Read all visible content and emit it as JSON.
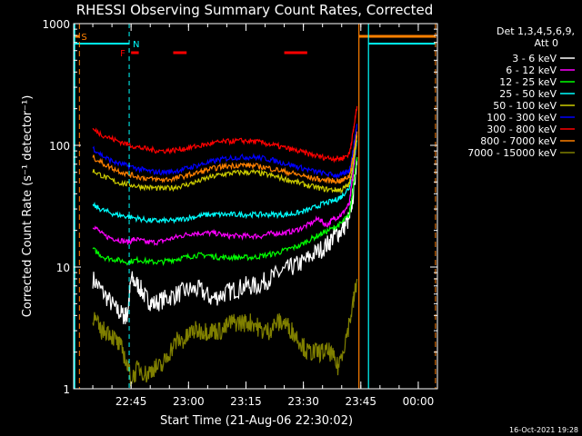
{
  "chart_data": {
    "type": "line",
    "title": "RHESSI Observing Summary Count Rates, Corrected",
    "xlabel": "Start Time (21-Aug-06 22:30:02)",
    "ylabel": "Corrected Count Rate (s⁻¹ detector⁻¹)",
    "yscale": "log",
    "ylim": [
      1,
      1000
    ],
    "xlim_minutes": [
      0,
      95
    ],
    "y_ticks": [
      {
        "v": 1,
        "label": "1"
      },
      {
        "v": 10,
        "label": "10"
      },
      {
        "v": 100,
        "label": "100"
      },
      {
        "v": 1000,
        "label": "1000"
      }
    ],
    "x_ticks": [
      {
        "t": 15,
        "label": "22:45"
      },
      {
        "t": 30,
        "label": "23:00"
      },
      {
        "t": 45,
        "label": "23:15"
      },
      {
        "t": 60,
        "label": "23:30"
      },
      {
        "t": 75,
        "label": "23:45"
      },
      {
        "t": 90,
        "label": "00:00"
      }
    ],
    "legend": {
      "header": [
        "Det 1,3,4,5,6,9,",
        "Att 0"
      ],
      "position": "right"
    },
    "series": [
      {
        "name": "3 - 6 keV",
        "color": "#ffffff",
        "data": [
          [
            5,
            8
          ],
          [
            8,
            6
          ],
          [
            11,
            4.5
          ],
          [
            13,
            4
          ],
          [
            14,
            4
          ],
          [
            15,
            8
          ],
          [
            17,
            7
          ],
          [
            19,
            5.5
          ],
          [
            21,
            5
          ],
          [
            24,
            5.5
          ],
          [
            27,
            6
          ],
          [
            30,
            6.5
          ],
          [
            33,
            6.5
          ],
          [
            36,
            5.5
          ],
          [
            39,
            6
          ],
          [
            42,
            6.5
          ],
          [
            45,
            7
          ],
          [
            48,
            7
          ],
          [
            51,
            8
          ],
          [
            54,
            9
          ],
          [
            57,
            10
          ],
          [
            60,
            11
          ],
          [
            63,
            13
          ],
          [
            66,
            15
          ],
          [
            68,
            18
          ],
          [
            70,
            20
          ],
          [
            72,
            25
          ],
          [
            73,
            40
          ],
          [
            74,
            80
          ]
        ]
      },
      {
        "name": "6 - 12 keV",
        "color": "#ff00ff",
        "data": [
          [
            5,
            22
          ],
          [
            8,
            18
          ],
          [
            11,
            17
          ],
          [
            14,
            16
          ],
          [
            16,
            17
          ],
          [
            19,
            16
          ],
          [
            22,
            16
          ],
          [
            25,
            17
          ],
          [
            28,
            18
          ],
          [
            31,
            19
          ],
          [
            34,
            19
          ],
          [
            37,
            19
          ],
          [
            40,
            18
          ],
          [
            43,
            18
          ],
          [
            46,
            18
          ],
          [
            49,
            18
          ],
          [
            52,
            19
          ],
          [
            55,
            19
          ],
          [
            58,
            20
          ],
          [
            61,
            22
          ],
          [
            64,
            25
          ],
          [
            66,
            22
          ],
          [
            68,
            25
          ],
          [
            70,
            27
          ],
          [
            72,
            33
          ],
          [
            73,
            60
          ],
          [
            74,
            120
          ]
        ]
      },
      {
        "name": "12 - 25 keV",
        "color": "#00ff00",
        "data": [
          [
            5,
            14
          ],
          [
            8,
            12
          ],
          [
            11,
            11.5
          ],
          [
            14,
            11
          ],
          [
            17,
            11.5
          ],
          [
            20,
            11
          ],
          [
            23,
            11
          ],
          [
            26,
            11.5
          ],
          [
            29,
            12
          ],
          [
            32,
            12.5
          ],
          [
            35,
            12.5
          ],
          [
            38,
            12
          ],
          [
            41,
            12
          ],
          [
            44,
            12
          ],
          [
            47,
            12
          ],
          [
            50,
            12.5
          ],
          [
            53,
            13
          ],
          [
            56,
            14
          ],
          [
            59,
            15
          ],
          [
            62,
            17
          ],
          [
            65,
            19
          ],
          [
            68,
            21
          ],
          [
            70,
            23
          ],
          [
            72,
            27
          ],
          [
            73,
            45
          ],
          [
            74,
            80
          ]
        ]
      },
      {
        "name": "25 - 50 keV",
        "color": "#00ffff",
        "data": [
          [
            5,
            32
          ],
          [
            8,
            29
          ],
          [
            11,
            27
          ],
          [
            14,
            26
          ],
          [
            17,
            25
          ],
          [
            20,
            24
          ],
          [
            23,
            24
          ],
          [
            26,
            24
          ],
          [
            29,
            25
          ],
          [
            32,
            26
          ],
          [
            35,
            27
          ],
          [
            38,
            27
          ],
          [
            41,
            27
          ],
          [
            44,
            27
          ],
          [
            47,
            27
          ],
          [
            50,
            27
          ],
          [
            53,
            27
          ],
          [
            56,
            27
          ],
          [
            59,
            28
          ],
          [
            62,
            30
          ],
          [
            65,
            33
          ],
          [
            68,
            35
          ],
          [
            70,
            38
          ],
          [
            72,
            45
          ],
          [
            73,
            70
          ],
          [
            74,
            110
          ]
        ]
      },
      {
        "name": "50 - 100 keV",
        "color": "#cccc00",
        "data": [
          [
            5,
            62
          ],
          [
            8,
            55
          ],
          [
            11,
            50
          ],
          [
            14,
            48
          ],
          [
            17,
            46
          ],
          [
            20,
            45
          ],
          [
            23,
            44
          ],
          [
            26,
            45
          ],
          [
            29,
            47
          ],
          [
            32,
            50
          ],
          [
            35,
            54
          ],
          [
            38,
            57
          ],
          [
            41,
            59
          ],
          [
            44,
            60
          ],
          [
            47,
            60
          ],
          [
            50,
            58
          ],
          [
            53,
            55
          ],
          [
            56,
            52
          ],
          [
            59,
            49
          ],
          [
            62,
            46
          ],
          [
            65,
            44
          ],
          [
            68,
            43
          ],
          [
            70,
            43
          ],
          [
            72,
            48
          ],
          [
            73,
            70
          ],
          [
            74,
            120
          ]
        ]
      },
      {
        "name": "100 - 300 keV",
        "color": "#0000ff",
        "data": [
          [
            5,
            95
          ],
          [
            8,
            80
          ],
          [
            11,
            72
          ],
          [
            14,
            68
          ],
          [
            17,
            64
          ],
          [
            20,
            61
          ],
          [
            23,
            60
          ],
          [
            26,
            61
          ],
          [
            29,
            64
          ],
          [
            32,
            68
          ],
          [
            35,
            72
          ],
          [
            38,
            76
          ],
          [
            41,
            79
          ],
          [
            44,
            80
          ],
          [
            47,
            80
          ],
          [
            50,
            78
          ],
          [
            53,
            74
          ],
          [
            56,
            70
          ],
          [
            59,
            66
          ],
          [
            62,
            62
          ],
          [
            65,
            59
          ],
          [
            68,
            57
          ],
          [
            70,
            57
          ],
          [
            72,
            62
          ],
          [
            73,
            90
          ],
          [
            74,
            150
          ]
        ]
      },
      {
        "name": "300 - 800 keV",
        "color": "#ff0000",
        "data": [
          [
            5,
            135
          ],
          [
            8,
            120
          ],
          [
            11,
            110
          ],
          [
            14,
            102
          ],
          [
            17,
            96
          ],
          [
            20,
            92
          ],
          [
            23,
            90
          ],
          [
            26,
            91
          ],
          [
            29,
            94
          ],
          [
            32,
            98
          ],
          [
            35,
            102
          ],
          [
            38,
            106
          ],
          [
            41,
            108
          ],
          [
            44,
            109
          ],
          [
            47,
            108
          ],
          [
            50,
            104
          ],
          [
            53,
            99
          ],
          [
            56,
            94
          ],
          [
            59,
            89
          ],
          [
            62,
            84
          ],
          [
            65,
            80
          ],
          [
            68,
            78
          ],
          [
            70,
            78
          ],
          [
            72,
            85
          ],
          [
            73,
            130
          ],
          [
            74,
            210
          ]
        ]
      },
      {
        "name": "800 - 7000 keV",
        "color": "#ff8000",
        "data": [
          [
            5,
            80
          ],
          [
            8,
            70
          ],
          [
            11,
            63
          ],
          [
            14,
            58
          ],
          [
            17,
            55
          ],
          [
            20,
            53
          ],
          [
            23,
            52
          ],
          [
            26,
            53
          ],
          [
            29,
            56
          ],
          [
            32,
            59
          ],
          [
            35,
            63
          ],
          [
            38,
            66
          ],
          [
            41,
            68
          ],
          [
            44,
            69
          ],
          [
            47,
            68
          ],
          [
            50,
            66
          ],
          [
            53,
            63
          ],
          [
            56,
            60
          ],
          [
            59,
            57
          ],
          [
            62,
            54
          ],
          [
            65,
            52
          ],
          [
            68,
            51
          ],
          [
            70,
            51
          ],
          [
            72,
            56
          ],
          [
            73,
            80
          ],
          [
            74,
            130
          ]
        ]
      },
      {
        "name": "7000 - 15000 keV",
        "color": "#808000",
        "data": [
          [
            5,
            4
          ],
          [
            7,
            3
          ],
          [
            9,
            3
          ],
          [
            11,
            2.5
          ],
          [
            13,
            2
          ],
          [
            15,
            1.2
          ],
          [
            17,
            1.5
          ],
          [
            19,
            1.3
          ],
          [
            21,
            1.5
          ],
          [
            23,
            1.5
          ],
          [
            25,
            2
          ],
          [
            27,
            2.5
          ],
          [
            29,
            2.5
          ],
          [
            31,
            3
          ],
          [
            33,
            3
          ],
          [
            35,
            3
          ],
          [
            37,
            3
          ],
          [
            39,
            3
          ],
          [
            41,
            3.5
          ],
          [
            43,
            3.5
          ],
          [
            45,
            3.5
          ],
          [
            47,
            3.5
          ],
          [
            49,
            3
          ],
          [
            51,
            3
          ],
          [
            53,
            3.5
          ],
          [
            55,
            3.5
          ],
          [
            57,
            3
          ],
          [
            59,
            2.5
          ],
          [
            61,
            2
          ],
          [
            63,
            2
          ],
          [
            65,
            2
          ],
          [
            67,
            2
          ],
          [
            69,
            1.5
          ],
          [
            71,
            2.5
          ],
          [
            73,
            5
          ],
          [
            74,
            8
          ]
        ]
      }
    ],
    "events": [
      {
        "label": "S",
        "color": "#ff8000",
        "t": -1,
        "line": "dashed"
      },
      {
        "label": "N",
        "color": "#00ffff",
        "t": 14.5,
        "line": "dashed"
      },
      {
        "label": "F",
        "color": "#ff0000"
      }
    ],
    "stamp": "16-Oct-2021 19:28"
  }
}
